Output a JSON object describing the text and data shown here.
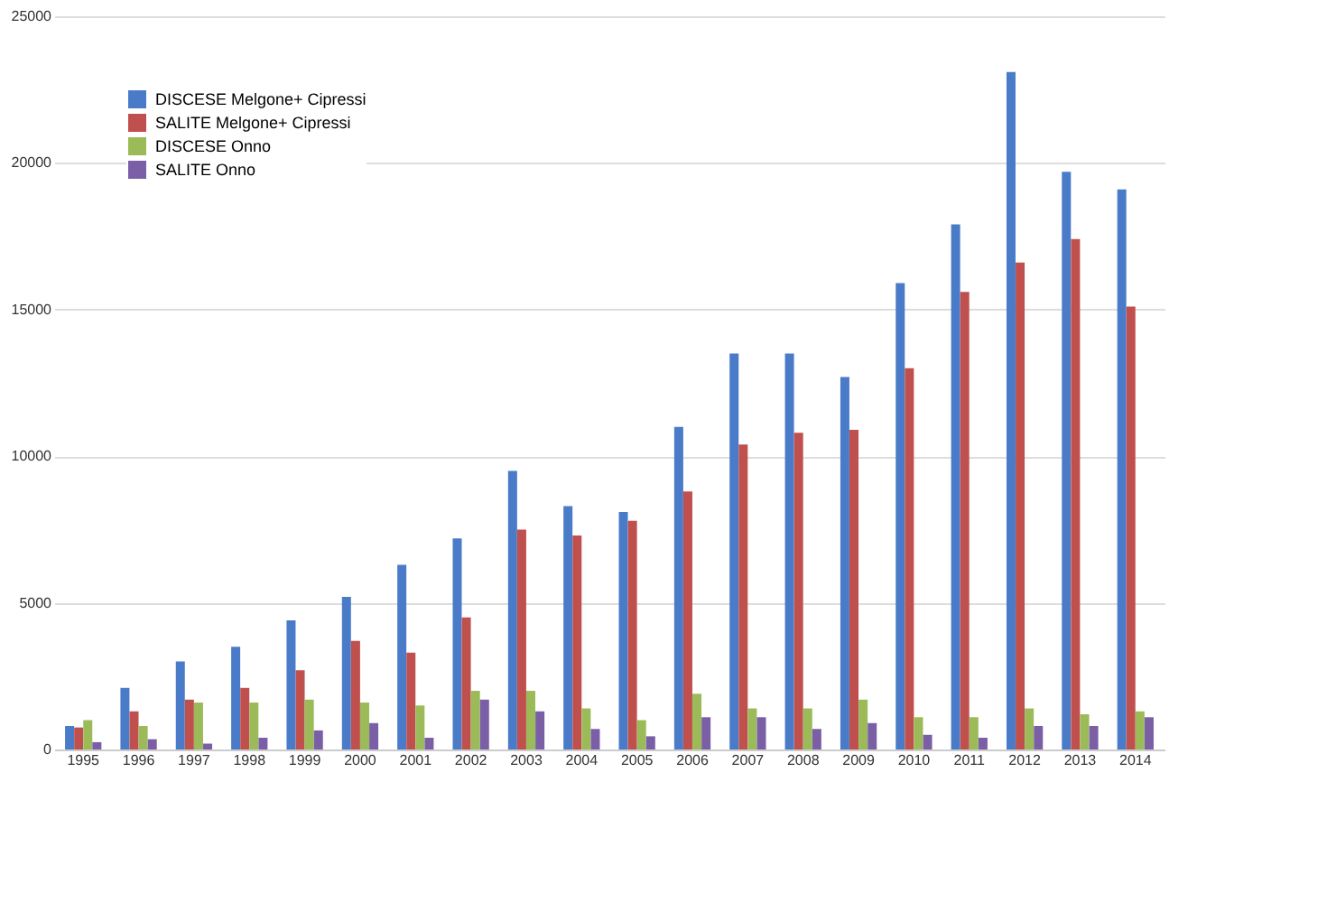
{
  "chart_data": {
    "type": "bar",
    "categories": [
      "1995",
      "1996",
      "1997",
      "1998",
      "1999",
      "2000",
      "2001",
      "2002",
      "2003",
      "2004",
      "2005",
      "2006",
      "2007",
      "2008",
      "2009",
      "2010",
      "2011",
      "2012",
      "2013",
      "2014"
    ],
    "series": [
      {
        "name": "DISCESE Melgone+ Cipressi",
        "color": "#4a7bc8",
        "values": [
          800,
          2100,
          3000,
          3500,
          4400,
          5200,
          6300,
          7200,
          9500,
          8300,
          8100,
          11000,
          13500,
          13500,
          12700,
          15900,
          17900,
          23100,
          19700,
          19100
        ]
      },
      {
        "name": "SALITE Melgone+ Cipressi",
        "color": "#c0504d",
        "values": [
          750,
          1300,
          1700,
          2100,
          2700,
          3700,
          3300,
          4500,
          7500,
          7300,
          7800,
          8800,
          10400,
          10800,
          10900,
          13000,
          15600,
          16600,
          17400,
          15100
        ]
      },
      {
        "name": "DISCESE Onno",
        "color": "#9bbb59",
        "values": [
          1000,
          800,
          1600,
          1600,
          1700,
          1600,
          1500,
          2000,
          2000,
          1400,
          1000,
          1900,
          1400,
          1400,
          1700,
          1100,
          1100,
          1400,
          1200,
          1300
        ]
      },
      {
        "name": "SALITE Onno",
        "color": "#7a5fa6",
        "values": [
          250,
          350,
          200,
          400,
          650,
          900,
          400,
          1700,
          1300,
          700,
          450,
          1100,
          1100,
          700,
          900,
          500,
          400,
          800,
          800,
          1100
        ]
      }
    ],
    "ylim": [
      0,
      25000
    ],
    "yticks": [
      0,
      5000,
      10000,
      15000,
      20000,
      25000
    ],
    "grid": "y",
    "legend": "top left"
  }
}
